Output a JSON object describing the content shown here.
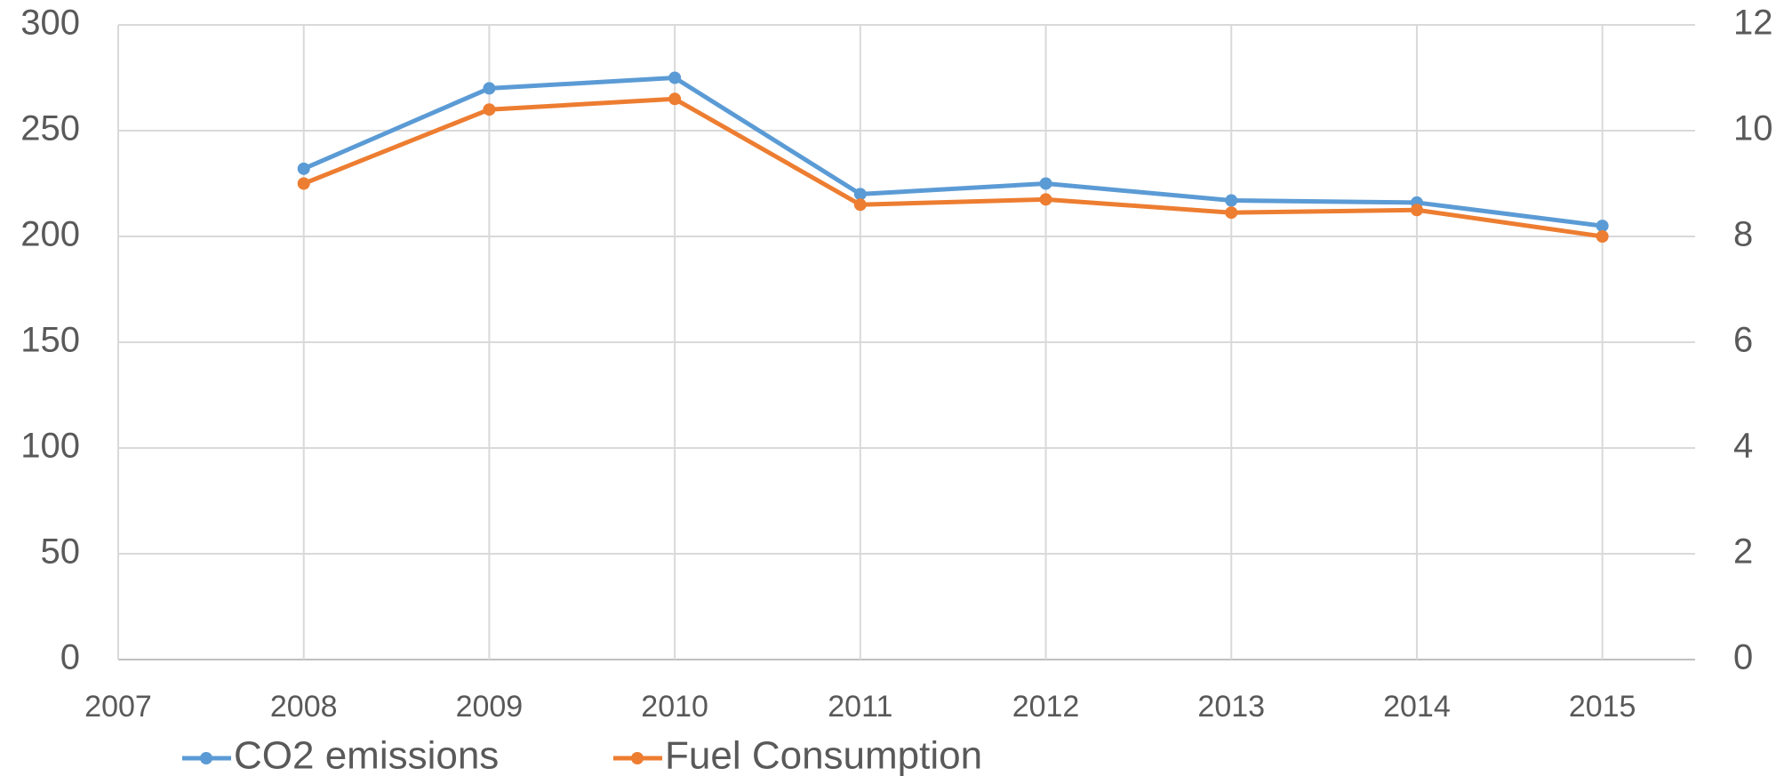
{
  "chart_data": {
    "type": "line",
    "x": [
      2008,
      2009,
      2010,
      2011,
      2012,
      2013,
      2014,
      2015
    ],
    "series": [
      {
        "name": "CO2 emissions",
        "color": "#5b9bd5",
        "values": [
          232,
          270,
          275,
          220,
          225,
          217,
          216,
          205
        ]
      },
      {
        "name": "Fuel Consumption",
        "color": "#ed7d31",
        "axis": "y2",
        "values": [
          9.0,
          10.4,
          10.6,
          8.6,
          8.7,
          8.45,
          8.5,
          8.0
        ]
      }
    ],
    "xlim": [
      2007,
      2015.5
    ],
    "xticks": [
      2007,
      2008,
      2009,
      2010,
      2011,
      2012,
      2013,
      2014,
      2015
    ],
    "ylim": [
      0,
      300
    ],
    "yticks": [
      0,
      50,
      100,
      150,
      200,
      250,
      300
    ],
    "y2lim": [
      0,
      12
    ],
    "y2ticks": [
      0,
      2,
      4,
      6,
      8,
      10,
      12
    ],
    "grid": true,
    "legend": "bottom"
  }
}
